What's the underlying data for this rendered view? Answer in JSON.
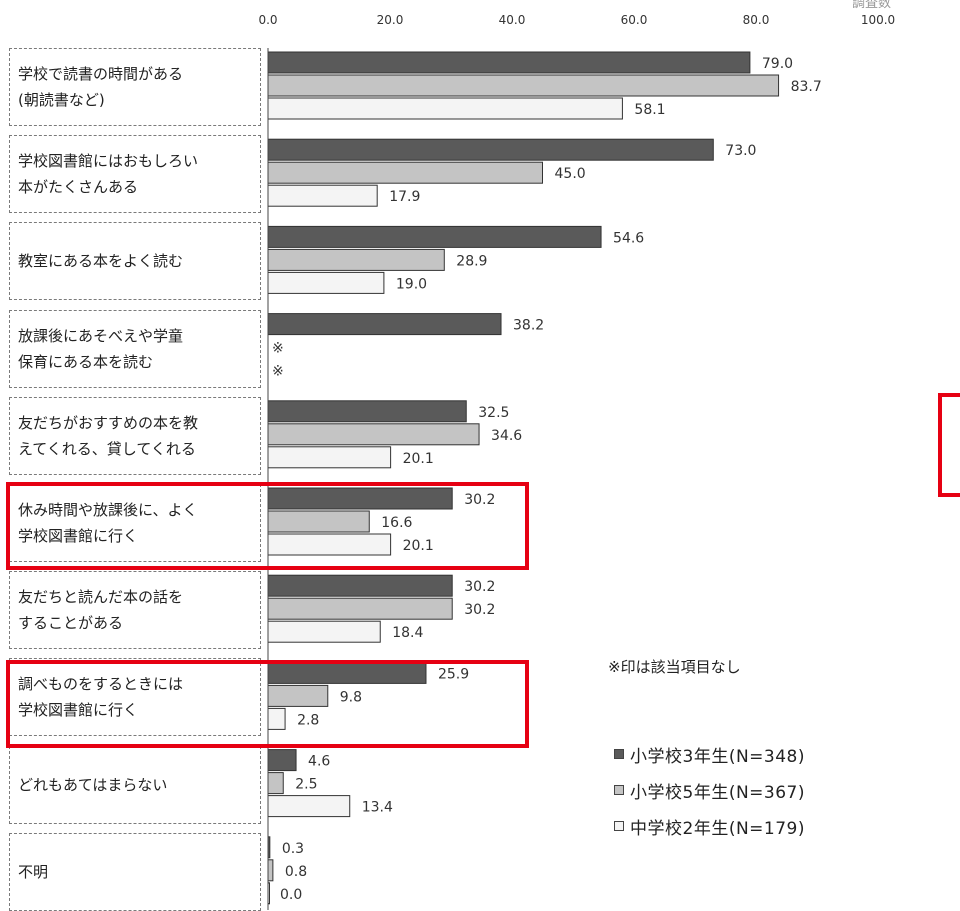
{
  "chart_data": {
    "type": "bar",
    "orientation": "horizontal",
    "xlim": [
      0,
      100
    ],
    "ticks": [
      "0.0",
      "20.0",
      "40.0",
      "60.0",
      "80.0",
      "100.0"
    ],
    "categories": [
      "学校で読書の時間がある\n(朝読書など)",
      "学校図書館にはおもしろい\n本がたくさんある",
      "教室にある本をよく読む",
      "放課後にあそべえや学童\n保育にある本を読む",
      "友だちがおすすめの本を教\nえてくれる、貸してくれる",
      "休み時間や放課後に、よく\n学校図書館に行く",
      "友だちと読んだ本の話を\nすることがある",
      "調べものをするときには\n学校図書館に行く",
      "どれもあてはまらない",
      "不明"
    ],
    "series": [
      {
        "name": "小学校3年生(N=348)",
        "color": "#5a5a5a",
        "values": [
          79.0,
          73.0,
          54.6,
          38.2,
          32.5,
          30.2,
          30.2,
          25.9,
          4.6,
          0.3
        ],
        "labels": [
          "79.0",
          "73.0",
          "54.6",
          "38.2",
          "32.5",
          "30.2",
          "30.2",
          "25.9",
          "4.6",
          "0.3"
        ]
      },
      {
        "name": "小学校5年生(N=367)",
        "color": "#c4c4c4",
        "values": [
          83.7,
          45.0,
          28.9,
          null,
          34.6,
          16.6,
          30.2,
          9.8,
          2.5,
          0.8
        ],
        "labels": [
          "83.7",
          "45.0",
          "28.9",
          "※",
          "34.6",
          "16.6",
          "30.2",
          "9.8",
          "2.5",
          "0.8"
        ]
      },
      {
        "name": "中学校2年生(N=179)",
        "color": "#f4f4f4",
        "values": [
          58.1,
          17.9,
          19.0,
          null,
          20.1,
          20.1,
          18.4,
          2.8,
          13.4,
          0.0
        ],
        "labels": [
          "58.1",
          "17.9",
          "19.0",
          "※",
          "20.1",
          "20.1",
          "18.4",
          "2.8",
          "13.4",
          "0.0"
        ]
      }
    ],
    "highlighted_categories": [
      5,
      7
    ],
    "note": "※印は該当項目なし",
    "grid": false,
    "legend_position": "bottom-right"
  },
  "corner_text": "調査数"
}
